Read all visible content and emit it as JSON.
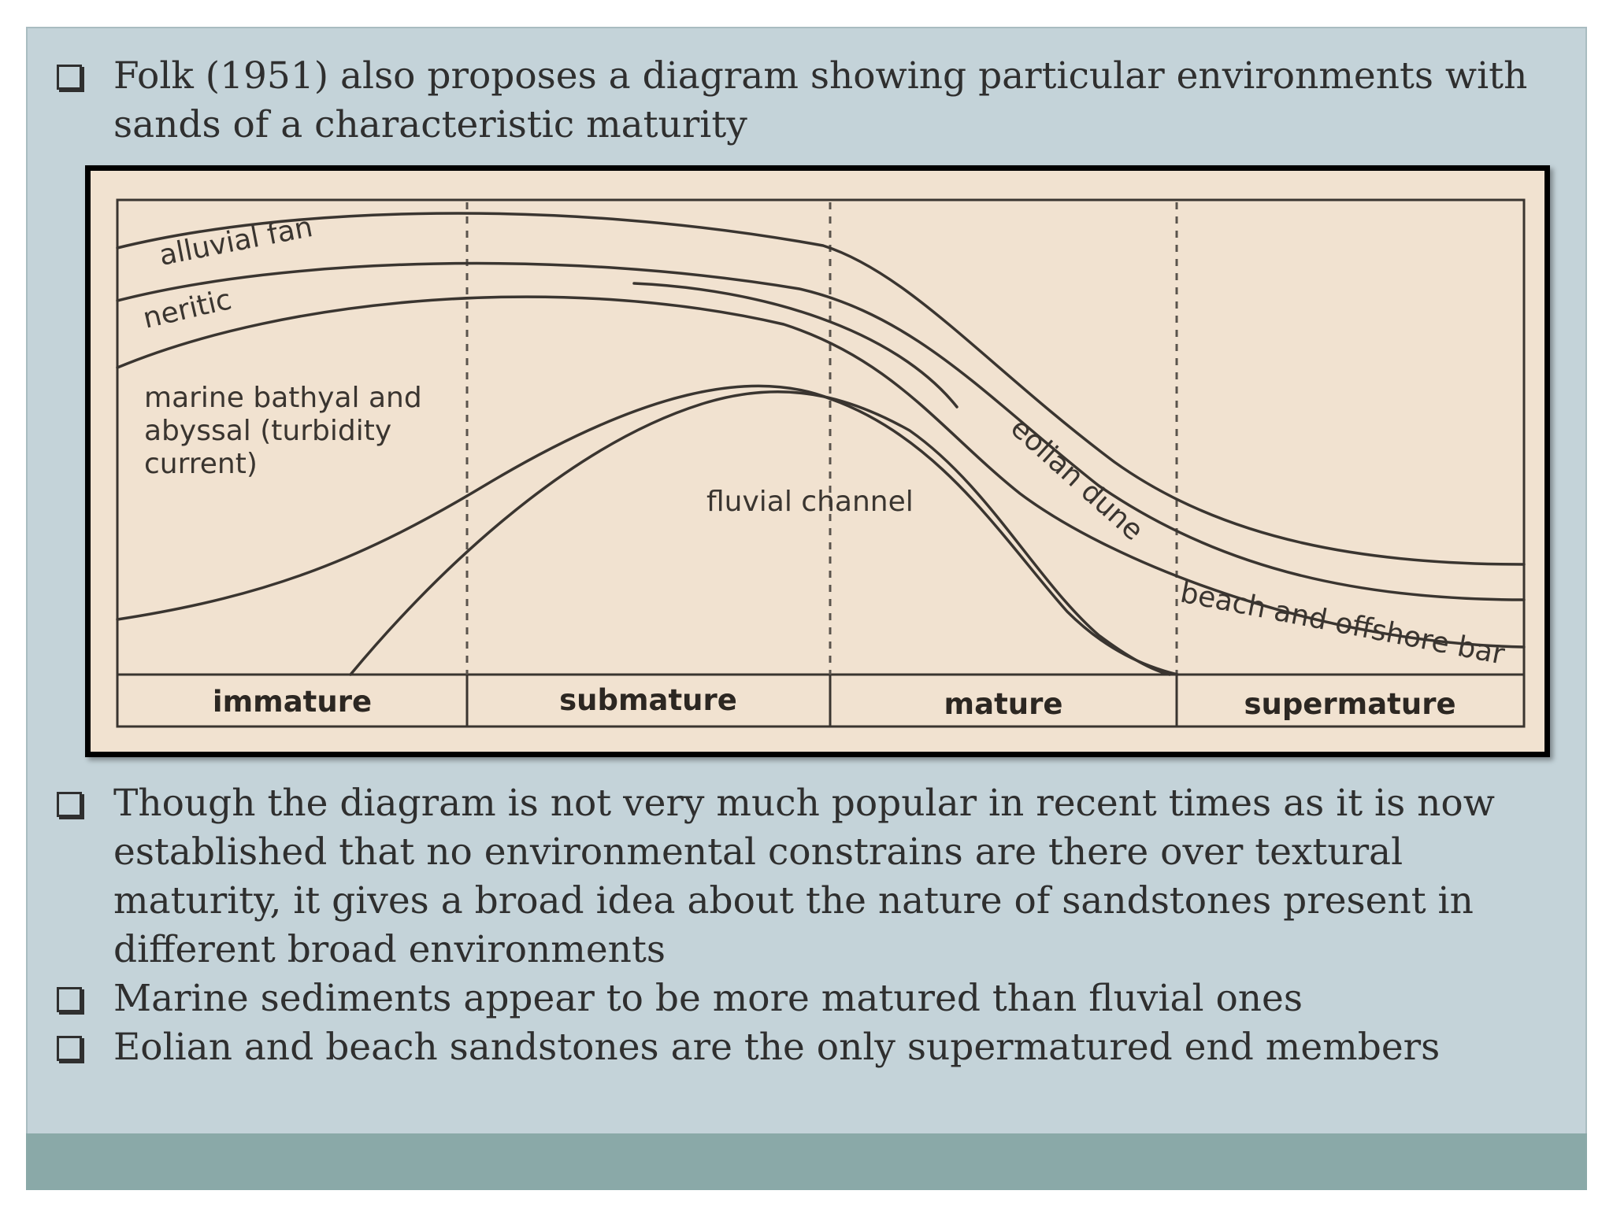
{
  "bullets": [
    {
      "text": "Folk (1951) also proposes a diagram showing particular environments with sands of a characteristic maturity"
    },
    {
      "text": "Though the diagram is not very much popular in recent times as it is now established that no environmental constrains are there over textural maturity, it gives a broad idea about the nature of sandstones present in different broad environments"
    },
    {
      "text": "Marine sediments appear to be more matured than fluvial ones"
    },
    {
      "text": "Eolian and beach sandstones are the only supermatured end members"
    }
  ],
  "diagram": {
    "environments": {
      "alluvial_fan": "alluvial fan",
      "neritic": "neritic",
      "marine_line1": "marine bathyal and",
      "marine_line2": "abyssal (turbidity",
      "marine_line3": "current)",
      "fluvial_channel": "fluvial channel",
      "eolian_dune": "eolian dune",
      "beach_bar": "beach and offshore bar"
    },
    "maturity_scale": [
      "immature",
      "submature",
      "mature",
      "supermature"
    ]
  },
  "colors": {
    "slide_background": "#c4d3d9",
    "footer_band": "#8aa9a8",
    "figure_background": "#f1e2d0",
    "text": "#2f2f2f"
  }
}
